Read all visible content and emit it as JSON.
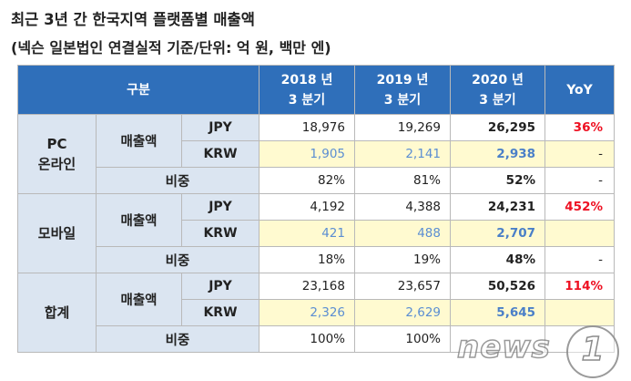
{
  "title": "최근 3년 간 한국지역 플랫폼별 매출액",
  "subtitle": "(넥슨 일본법인 연결실적 기준/단위: 억 원, 백만 엔)",
  "header": {
    "category": "구분",
    "col1": "2018 년\n3 분기",
    "col2": "2019 년\n3 분기",
    "col3": "2020 년\n3 분기",
    "yoy": "YoY"
  },
  "sections": [
    {
      "name": "PC\n온라인",
      "sales_label": "매출액",
      "jpy": {
        "cur": "JPY",
        "v1": "18,976",
        "v2": "19,269",
        "v3": "26,295",
        "yoy": "36%"
      },
      "krw": {
        "cur": "KRW",
        "v1": "1,905",
        "v2": "2,141",
        "v3": "2,938",
        "yoy": "-"
      },
      "share": {
        "label": "비중",
        "v1": "82%",
        "v2": "81%",
        "v3": "52%",
        "yoy": "-"
      }
    },
    {
      "name": "모바일",
      "sales_label": "매출액",
      "jpy": {
        "cur": "JPY",
        "v1": "4,192",
        "v2": "4,388",
        "v3": "24,231",
        "yoy": "452%"
      },
      "krw": {
        "cur": "KRW",
        "v1": "421",
        "v2": "488",
        "v3": "2,707",
        "yoy": ""
      },
      "share": {
        "label": "비중",
        "v1": "18%",
        "v2": "19%",
        "v3": "48%",
        "yoy": "-"
      }
    },
    {
      "name": "합계",
      "sales_label": "매출액",
      "jpy": {
        "cur": "JPY",
        "v1": "23,168",
        "v2": "23,657",
        "v3": "50,526",
        "yoy": "114%"
      },
      "krw": {
        "cur": "KRW",
        "v1": "2,326",
        "v2": "2,629",
        "v3": "5,645",
        "yoy": ""
      },
      "share": {
        "label": "비중",
        "v1": "100%",
        "v2": "100%",
        "v3": "",
        "yoy": ""
      }
    }
  ],
  "watermark": {
    "text": "news",
    "mark": "1"
  }
}
